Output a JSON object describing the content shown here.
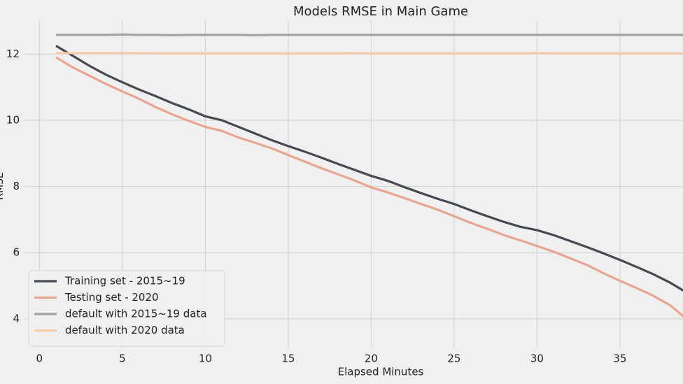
{
  "chart_data": {
    "type": "line",
    "title": "Models RMSE in Main Game",
    "x_label": "Elapsed Minutes",
    "y_label": "RMSE",
    "x": [
      1,
      2,
      3,
      4,
      5,
      6,
      7,
      8,
      9,
      10,
      11,
      12,
      13,
      14,
      15,
      16,
      17,
      18,
      19,
      20,
      21,
      22,
      23,
      24,
      25,
      26,
      27,
      28,
      29,
      30,
      31,
      32,
      33,
      34,
      35,
      36,
      37,
      38,
      39
    ],
    "series": [
      {
        "name": "Training set - 2015~19",
        "color": "#454a52",
        "values": [
          12.25,
          11.95,
          11.65,
          11.38,
          11.15,
          10.93,
          10.73,
          10.52,
          10.33,
          10.12,
          10.0,
          9.8,
          9.6,
          9.4,
          9.22,
          9.05,
          8.87,
          8.68,
          8.5,
          8.32,
          8.17,
          7.98,
          7.8,
          7.63,
          7.47,
          7.28,
          7.1,
          6.93,
          6.78,
          6.68,
          6.53,
          6.35,
          6.17,
          5.98,
          5.78,
          5.57,
          5.35,
          5.1,
          4.8
        ]
      },
      {
        "name": "Testing set - 2020",
        "color": "#e9a590",
        "values": [
          11.9,
          11.6,
          11.35,
          11.1,
          10.87,
          10.65,
          10.4,
          10.18,
          9.98,
          9.8,
          9.68,
          9.48,
          9.32,
          9.15,
          8.95,
          8.75,
          8.55,
          8.37,
          8.18,
          7.97,
          7.82,
          7.65,
          7.47,
          7.3,
          7.1,
          6.9,
          6.72,
          6.53,
          6.37,
          6.2,
          6.03,
          5.83,
          5.63,
          5.38,
          5.15,
          4.93,
          4.7,
          4.42,
          4.0
        ]
      },
      {
        "name": "default with 2015~19 data",
        "color": "#a3a3a3",
        "values": [
          12.58,
          12.58,
          12.58,
          12.58,
          12.59,
          12.58,
          12.58,
          12.57,
          12.58,
          12.58,
          12.58,
          12.58,
          12.57,
          12.58,
          12.58,
          12.58,
          12.58,
          12.58,
          12.58,
          12.58,
          12.58,
          12.58,
          12.58,
          12.58,
          12.58,
          12.58,
          12.58,
          12.58,
          12.58,
          12.58,
          12.58,
          12.58,
          12.58,
          12.58,
          12.58,
          12.58,
          12.58,
          12.58,
          12.58
        ]
      },
      {
        "name": "default with 2020 data",
        "color": "#f5caa9",
        "values": [
          12.03,
          12.03,
          12.03,
          12.03,
          12.03,
          12.03,
          12.02,
          12.02,
          12.02,
          12.02,
          12.02,
          12.02,
          12.02,
          12.02,
          12.02,
          12.02,
          12.02,
          12.02,
          12.03,
          12.02,
          12.02,
          12.02,
          12.02,
          12.02,
          12.02,
          12.02,
          12.02,
          12.02,
          12.02,
          12.03,
          12.02,
          12.02,
          12.02,
          12.02,
          12.02,
          12.02,
          12.02,
          12.02,
          12.02
        ]
      }
    ],
    "xlim": [
      -0.9,
      38.8
    ],
    "ylim": [
      3.13,
      13.0
    ],
    "xticks": [
      0,
      5,
      10,
      15,
      20,
      25,
      30,
      35
    ],
    "yticks": [
      4,
      6,
      8,
      10,
      12
    ],
    "grid": true,
    "legend": "lower left"
  }
}
